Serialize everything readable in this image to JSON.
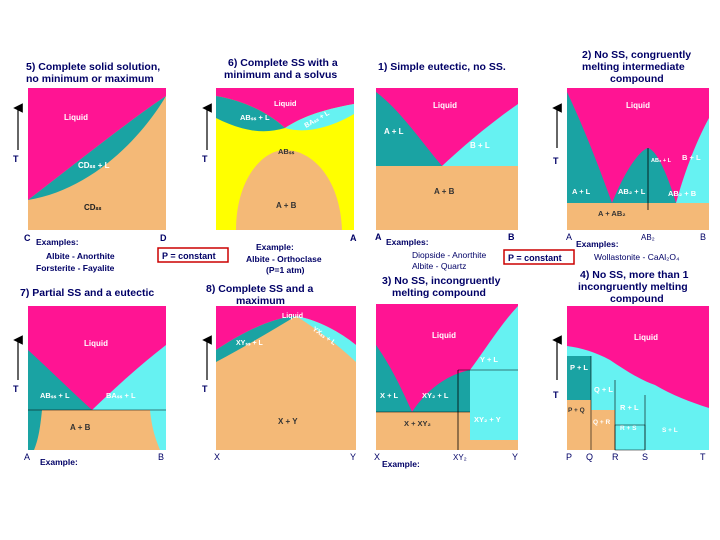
{
  "colors": {
    "liquid": "#ff1493",
    "solid_orange": "#f4b977",
    "teal": "#1aa3a3",
    "cyan": "#66f2f2",
    "yellow": "#ffff00",
    "navy_text": "#000066",
    "white_text": "#ffffff",
    "red_box": "#cc0000"
  },
  "panel5": {
    "title": "5) Complete solid solution, no minimum or maximum",
    "title_l1": "5) Complete solid solution,",
    "title_l2": "no minimum or maximum",
    "liquid": "Liquid",
    "two_phase": "CDₛₛ + L",
    "solid": "CDₛₛ",
    "t_axis": "T",
    "x_left": "C",
    "x_right": "D",
    "examples": "Examples:",
    "ex1": "Albite - Anorthite",
    "ex2": "Forsterite - Fayalite"
  },
  "panel6": {
    "title_l1": "6) Complete SS with a",
    "title_l2": "minimum and a solvus",
    "liquid": "Liquid",
    "ab_l": "ABₛₛ + L",
    "ba_l": "BAₛₛ + L",
    "abss": "ABₛₛ",
    "solvus": "A + B",
    "t_axis": "T",
    "x_right": "A",
    "example": "Example:",
    "ex1": "Albite - Orthoclase",
    "ex2": "(P=1 atm)",
    "constant": "P = constant"
  },
  "panel1": {
    "title": "1) Simple eutectic, no SS.",
    "liquid": "Liquid",
    "a_l": "A + L",
    "b_l": "B + L",
    "a_b": "A + B",
    "x_left": "A",
    "x_right": "B",
    "examples": "Examples:",
    "ex1": "Diopside - Anorthite",
    "ex2": "Albite - Quartz",
    "constant": "P = constant"
  },
  "panel2": {
    "title_l1": "2) No SS, congruently",
    "title_l2": "melting intermediate",
    "title_l3": "compound",
    "liquid": "Liquid",
    "ab2_l_small": "AB₂ + L",
    "b_l": "B + L",
    "a_l": "A + L",
    "ab2_l": "AB₂ + L",
    "ab2_b": "AB₂ + B",
    "a_ab2": "A + AB₂",
    "t_axis": "T",
    "x_left": "A",
    "x_mid": "AB₂",
    "x_right": "B",
    "examples": "Examples:",
    "ex1": "Wollastonite - CaAl₂O₄"
  },
  "panel3": {
    "title_l1": "3) No SS, incongruently",
    "title_l2": "melting compound",
    "liquid": "Liquid",
    "y_l": "Y + L",
    "x_l": "X + L",
    "xy2_l": "XY₂ + L",
    "x_xy2": "X + XY₂",
    "xy2_y": "XY₂ + Y",
    "x_left": "X",
    "x_mid": "XY₂",
    "x_right": "Y",
    "example": "Example:"
  },
  "panel4": {
    "title_l1": "4) No SS, more than 1",
    "title_l2": "incongruently melting",
    "title_l3": "compound",
    "liquid": "Liquid",
    "p_l": "P + L",
    "q_l": "Q + L",
    "r_l": "R + L",
    "p_q": "P + Q",
    "q_r": "Q + R",
    "r_s": "R + S",
    "s_l": "S + L",
    "t_axis": "T",
    "x_p": "P",
    "x_q": "Q",
    "x_r": "R",
    "x_s": "S",
    "x_t": "T"
  },
  "panel7": {
    "title": "7) Partial SS and a eutectic",
    "liquid": "Liquid",
    "ab_l": "ABₛₛ + L",
    "ba_l": "BAₛₛ + L",
    "a_b": "A + B",
    "t_axis": "T",
    "x_left": "A",
    "x_right": "B",
    "example": "Example:"
  },
  "panel8": {
    "title_l1": "8) Complete SS and a",
    "title_l2": "maximum",
    "liquid": "Liquid",
    "xy_l": "XYₛₛ + L",
    "yx_l": "YXₛₛ + L",
    "x_y": "X + Y",
    "t_axis": "T",
    "x_left": "X",
    "x_right": "Y"
  }
}
